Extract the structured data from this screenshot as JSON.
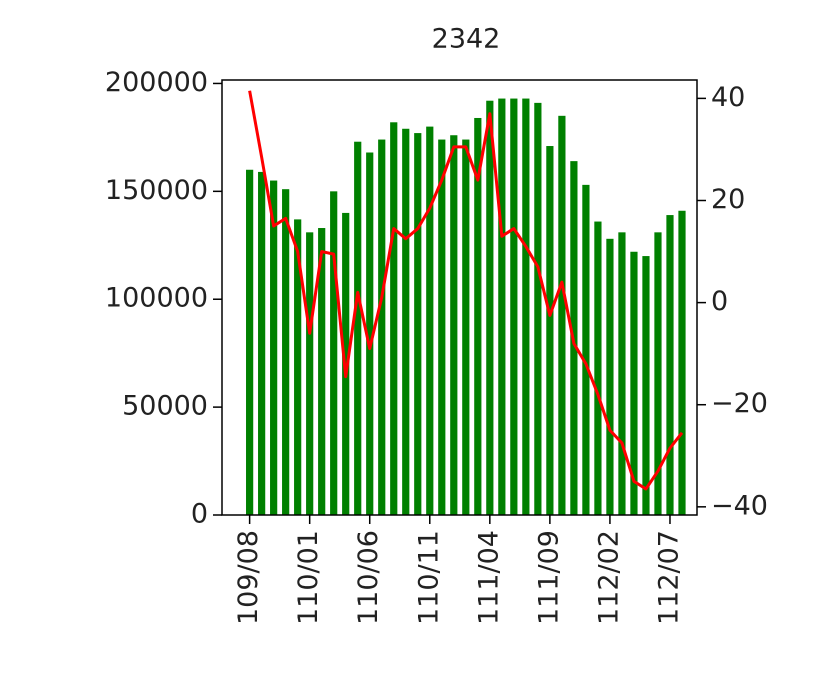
{
  "chart_data": {
    "type": "bar",
    "title": "2342",
    "categories": [
      "109/08",
      null,
      null,
      null,
      null,
      "110/01",
      null,
      null,
      null,
      null,
      "110/06",
      null,
      null,
      null,
      null,
      "110/11",
      null,
      null,
      null,
      null,
      "111/04",
      null,
      null,
      null,
      null,
      "111/09",
      null,
      null,
      null,
      null,
      "112/02",
      null,
      null,
      null,
      null,
      "112/07",
      null
    ],
    "series": [
      {
        "type": "bar",
        "color": "#008000",
        "axis": "y",
        "values": [
          160000,
          159000,
          155000,
          151000,
          137000,
          131000,
          133000,
          150000,
          140000,
          173000,
          168000,
          174000,
          182000,
          179000,
          177000,
          180000,
          174000,
          176000,
          174000,
          184000,
          192000,
          193000,
          193000,
          193000,
          191000,
          171000,
          185000,
          164000,
          153000,
          136000,
          128000,
          131000,
          122000,
          120000,
          131000,
          139000,
          141000
        ]
      },
      {
        "type": "line",
        "color": "#ff0000",
        "axis": "y2",
        "values": [
          41.5,
          28.5,
          15,
          16.5,
          10,
          -6,
          10,
          9.5,
          -14.5,
          2,
          -9,
          1,
          14.5,
          12.5,
          14.5,
          18.5,
          24,
          30.5,
          30.5,
          24,
          37,
          13,
          14.5,
          11,
          7,
          -2.5,
          4,
          -8,
          -12,
          -18,
          -25,
          -27.5,
          -35,
          -36.5,
          -33,
          -28.5,
          -25.5
        ]
      }
    ],
    "ylim": [
      0,
      201600
    ],
    "yticks": [
      0,
      50000,
      100000,
      150000,
      200000
    ],
    "y2lim": [
      -41.6,
      43.6
    ],
    "y2ticks": [
      {
        "value": -40,
        "label": "−40"
      },
      {
        "value": -20,
        "label": "−20"
      },
      0,
      20,
      40
    ]
  }
}
